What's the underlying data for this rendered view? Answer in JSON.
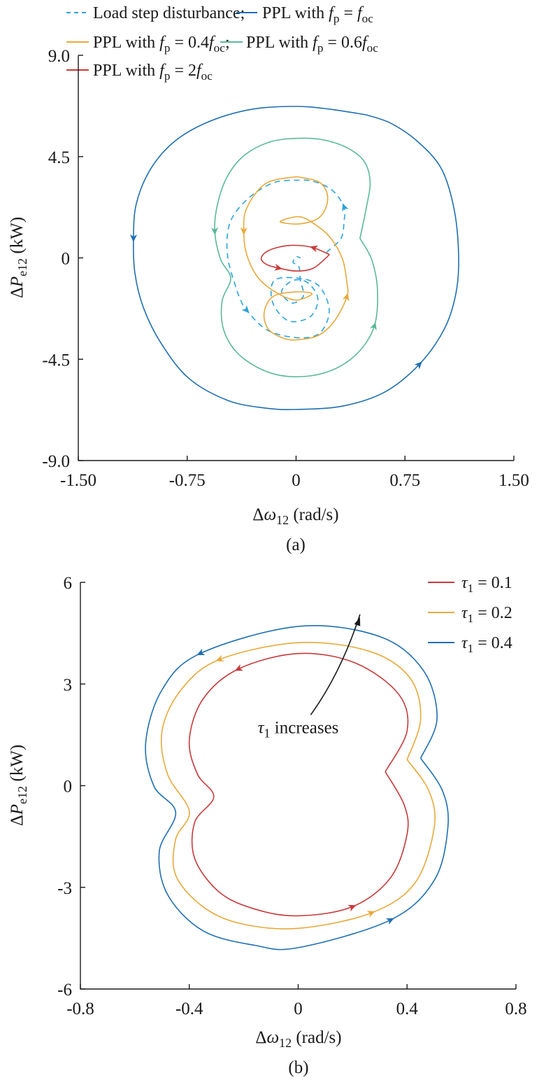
{
  "chart_data": [
    {
      "type": "line",
      "panel_label": "(a)",
      "xlabel": "Δ*ω*_{12} (rad/s)",
      "ylabel": "Δ*P*_{e12} (kW)",
      "xlim": [
        -1.5,
        1.5
      ],
      "ylim": [
        -9.0,
        9.0
      ],
      "xticks": [
        "-1.50",
        "-0.75",
        "0",
        "0.75",
        "1.50"
      ],
      "xtick_values": [
        -1.5,
        -0.75,
        0,
        0.75,
        1.5
      ],
      "yticks": [
        "9.0",
        "4.5",
        "0",
        "-4.5",
        "-9.0"
      ],
      "ytick_values": [
        9.0,
        4.5,
        0,
        -4.5,
        -9.0
      ],
      "grid": false,
      "legend_position": "top",
      "series": [
        {
          "name": "Load step disturbance;",
          "color": "#2ba3dc",
          "dashed": true,
          "arrows": [
            3,
            14
          ],
          "points": [
            [
              0.21,
              0.25
            ],
            [
              0.31,
              0.87
            ],
            [
              0.33,
              1.6
            ],
            [
              0.33,
              2.27
            ],
            [
              0.25,
              3.0
            ],
            [
              0.12,
              3.4
            ],
            [
              0,
              3.45
            ],
            [
              -0.15,
              3.35
            ],
            [
              -0.3,
              2.8
            ],
            [
              -0.42,
              2.0
            ],
            [
              -0.47,
              1.18
            ],
            [
              -0.47,
              0
            ],
            [
              -0.42,
              -1.2
            ],
            [
              -0.38,
              -1.9
            ],
            [
              -0.34,
              -2.33
            ],
            [
              -0.2,
              -3.2
            ],
            [
              0,
              -3.54
            ],
            [
              0.15,
              -3.4
            ],
            [
              0.22,
              -2.7
            ],
            [
              0.22,
              -2.0
            ],
            [
              0.15,
              -1.2
            ],
            [
              0.02,
              -0.9
            ],
            [
              -0.15,
              -1.0
            ],
            [
              -0.16,
              -2.0
            ],
            [
              -0.05,
              -2.8
            ],
            [
              0.1,
              -2.6
            ],
            [
              0.15,
              -1.8
            ],
            [
              0.08,
              -1.1
            ],
            [
              -0.02,
              -1.0
            ],
            [
              -0.1,
              -1.5
            ],
            [
              -0.03,
              -2.0
            ],
            [
              0.05,
              -1.7
            ],
            [
              0.03,
              -1.0
            ],
            [
              0.02,
              -0.4
            ],
            [
              -0.02,
              -0.2
            ],
            [
              0,
              0.05
            ],
            [
              0.03,
              0
            ]
          ]
        },
        {
          "name": "PPL with *f*_{p} = *f*_{oc}",
          "color": "#1f6fb2",
          "dashed": false,
          "arrows": [
            8,
            18
          ],
          "points": [
            [
              0.48,
              6.36
            ],
            [
              0.23,
              6.61
            ],
            [
              0,
              6.73
            ],
            [
              -0.3,
              6.61
            ],
            [
              -0.59,
              6.08
            ],
            [
              -0.83,
              5.21
            ],
            [
              -1.0,
              3.97
            ],
            [
              -1.1,
              2.42
            ],
            [
              -1.12,
              0.87
            ],
            [
              -1.11,
              -0.68
            ],
            [
              -1.05,
              -2.23
            ],
            [
              -0.93,
              -3.79
            ],
            [
              -0.74,
              -5.34
            ],
            [
              -0.47,
              -6.33
            ],
            [
              -0.21,
              -6.67
            ],
            [
              0,
              -6.73
            ],
            [
              0.32,
              -6.58
            ],
            [
              0.61,
              -5.96
            ],
            [
              0.85,
              -4.72
            ],
            [
              1.02,
              -3.17
            ],
            [
              1.1,
              -1.61
            ],
            [
              1.12,
              0
            ],
            [
              1.09,
              2.11
            ],
            [
              1.0,
              3.97
            ],
            [
              0.83,
              5.21
            ],
            [
              0.65,
              5.99
            ],
            [
              0.48,
              6.36
            ]
          ]
        },
        {
          "name": "PPL with *f*_{p} = 0.4*f*_{oc};",
          "color": "#e8a93a",
          "dashed": false,
          "arrows": [
            3,
            17
          ],
          "points": [
            [
              0,
              3.61
            ],
            [
              -0.21,
              3.3
            ],
            [
              -0.34,
              2.21
            ],
            [
              -0.36,
              1.18
            ],
            [
              -0.34,
              0.15
            ],
            [
              -0.26,
              -0.89
            ],
            [
              -0.13,
              -1.56
            ],
            [
              0,
              -1.87
            ],
            [
              0.11,
              -1.59
            ],
            [
              -0.01,
              -1.51
            ],
            [
              -0.16,
              -1.72
            ],
            [
              -0.22,
              -2.44
            ],
            [
              -0.19,
              -3.17
            ],
            [
              -0.08,
              -3.58
            ],
            [
              0.02,
              -3.63
            ],
            [
              0.16,
              -3.42
            ],
            [
              0.27,
              -2.75
            ],
            [
              0.35,
              -1.72
            ],
            [
              0.35,
              -1.1
            ],
            [
              0.32,
              -0.06
            ],
            [
              0.24,
              0.87
            ],
            [
              0.13,
              1.49
            ],
            [
              0.02,
              1.83
            ],
            [
              -0.11,
              1.61
            ],
            [
              0.02,
              1.51
            ],
            [
              0.15,
              1.75
            ],
            [
              0.21,
              2.32
            ],
            [
              0.21,
              2.94
            ],
            [
              0.15,
              3.4
            ],
            [
              0,
              3.61
            ]
          ]
        },
        {
          "name": "PPL with *f*_{p} = 0.6*f*_{oc}",
          "color": "#5bb89a",
          "dashed": false,
          "arrows": [
            11,
            21
          ],
          "points": [
            [
              0.44,
              0.87
            ],
            [
              0.48,
              2.11
            ],
            [
              0.51,
              3.35
            ],
            [
              0.47,
              4.28
            ],
            [
              0.35,
              4.9
            ],
            [
              0.18,
              5.25
            ],
            [
              0,
              5.31
            ],
            [
              -0.18,
              5.15
            ],
            [
              -0.35,
              4.59
            ],
            [
              -0.47,
              3.66
            ],
            [
              -0.54,
              2.42
            ],
            [
              -0.56,
              1.18
            ],
            [
              -0.52,
              -0.06
            ],
            [
              -0.45,
              -0.9
            ],
            [
              -0.51,
              -1.92
            ],
            [
              -0.5,
              -3.17
            ],
            [
              -0.4,
              -4.25
            ],
            [
              -0.21,
              -5.03
            ],
            [
              0,
              -5.28
            ],
            [
              0.23,
              -5.03
            ],
            [
              0.42,
              -4.25
            ],
            [
              0.54,
              -3.01
            ],
            [
              0.56,
              -1.37
            ],
            [
              0.52,
              -0.06
            ],
            [
              0.44,
              0.87
            ]
          ]
        },
        {
          "name": "PPL with *f*_{p} = 2*f*_{oc}",
          "color": "#c8393a",
          "dashed": false,
          "arrows": [
            1,
            7
          ],
          "points": [
            [
              0.23,
              0.15
            ],
            [
              0.12,
              0.45
            ],
            [
              0,
              0.56
            ],
            [
              -0.12,
              0.48
            ],
            [
              -0.21,
              0.25
            ],
            [
              -0.24,
              -0.05
            ],
            [
              -0.2,
              -0.3
            ],
            [
              -0.12,
              -0.45
            ],
            [
              0,
              -0.58
            ],
            [
              0.12,
              -0.45
            ],
            [
              0.23,
              0.15
            ]
          ]
        }
      ]
    },
    {
      "type": "line",
      "panel_label": "(b)",
      "xlabel": "Δ*ω*_{12} (rad/s)",
      "ylabel": "Δ*P*_{e12} (kW)",
      "xlim": [
        -0.8,
        0.8
      ],
      "ylim": [
        -6,
        6
      ],
      "xticks": [
        "-0.8",
        "-0.4",
        "0",
        "0.4",
        "0.8"
      ],
      "xtick_values": [
        -0.8,
        -0.4,
        0,
        0.4,
        0.8
      ],
      "yticks": [
        "6",
        "3",
        "0",
        "-3",
        "-6"
      ],
      "ytick_values": [
        6,
        3,
        0,
        -3,
        -6
      ],
      "grid": false,
      "legend_position": "top-right",
      "annotation": {
        "text": "*τ*_{1} increases",
        "arrow_from": [
          0.046,
          2.09
        ],
        "arrow_to": [
          0.227,
          4.97
        ],
        "text_at": [
          0.0,
          1.55
        ]
      },
      "series": [
        {
          "name": "*τ*_{1} = 0.1",
          "color": "#c8393a",
          "dashed": false,
          "arrows": [
            5,
            15
          ],
          "points": [
            [
              0.32,
              0.41
            ],
            [
              0.4,
              1.62
            ],
            [
              0.37,
              2.69
            ],
            [
              0.21,
              3.62
            ],
            [
              0,
              3.9
            ],
            [
              -0.22,
              3.44
            ],
            [
              -0.35,
              2.55
            ],
            [
              -0.4,
              1.34
            ],
            [
              -0.37,
              0.34
            ],
            [
              -0.31,
              -0.33
            ],
            [
              -0.38,
              -1.08
            ],
            [
              -0.38,
              -2.15
            ],
            [
              -0.29,
              -3.14
            ],
            [
              -0.16,
              -3.64
            ],
            [
              0,
              -3.84
            ],
            [
              0.2,
              -3.57
            ],
            [
              0.34,
              -2.71
            ],
            [
              0.4,
              -1.43
            ],
            [
              0.39,
              -0.58
            ],
            [
              0.32,
              0.41
            ]
          ]
        },
        {
          "name": "*τ*_{1} = 0.2",
          "color": "#e8a93a",
          "dashed": false,
          "arrows": [
            5,
            15
          ],
          "points": [
            [
              0.4,
              0.77
            ],
            [
              0.45,
              1.98
            ],
            [
              0.41,
              3.19
            ],
            [
              0.26,
              3.97
            ],
            [
              0,
              4.22
            ],
            [
              -0.29,
              3.72
            ],
            [
              -0.43,
              2.83
            ],
            [
              -0.5,
              1.62
            ],
            [
              -0.48,
              0.34
            ],
            [
              -0.4,
              -0.76
            ],
            [
              -0.45,
              -1.58
            ],
            [
              -0.45,
              -2.64
            ],
            [
              -0.35,
              -3.57
            ],
            [
              -0.21,
              -4.07
            ],
            [
              0,
              -4.21
            ],
            [
              0.27,
              -3.75
            ],
            [
              0.43,
              -2.86
            ],
            [
              0.5,
              -1.22
            ],
            [
              0.48,
              -0.15
            ],
            [
              0.4,
              0.77
            ]
          ]
        },
        {
          "name": "*τ*_{1} = 0.4",
          "color": "#1f6fb2",
          "dashed": false,
          "arrows": [
            5,
            15
          ],
          "points": [
            [
              0.45,
              0.81
            ],
            [
              0.51,
              1.98
            ],
            [
              0.46,
              3.4
            ],
            [
              0.3,
              4.4
            ],
            [
              0,
              4.7
            ],
            [
              -0.36,
              3.9
            ],
            [
              -0.5,
              2.83
            ],
            [
              -0.56,
              1.27
            ],
            [
              -0.53,
              -0.01
            ],
            [
              -0.45,
              -0.79
            ],
            [
              -0.51,
              -1.93
            ],
            [
              -0.48,
              -3.21
            ],
            [
              -0.35,
              -4.28
            ],
            [
              -0.16,
              -4.71
            ],
            [
              0,
              -4.78
            ],
            [
              0.34,
              -3.96
            ],
            [
              0.5,
              -2.79
            ],
            [
              0.55,
              -1.22
            ],
            [
              0.53,
              -0.15
            ],
            [
              0.45,
              0.81
            ]
          ]
        }
      ]
    }
  ]
}
